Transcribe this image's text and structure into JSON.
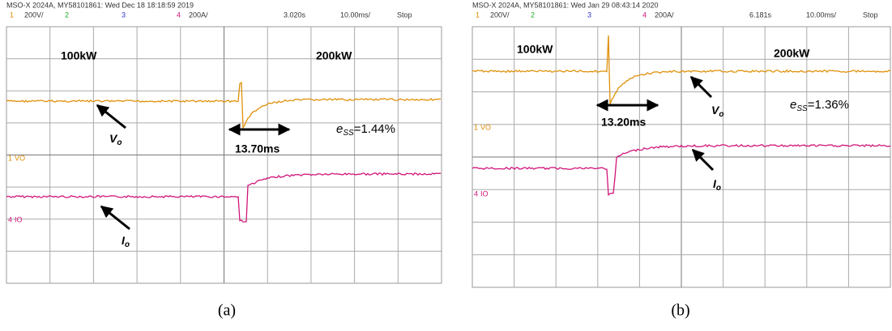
{
  "panels": [
    {
      "header": "MSO-X 2024A, MY58101861: Wed Dec 18 18:18:59 2019",
      "channels": {
        "ch1": "1",
        "ch1_scale": "200V/",
        "ch2": "2",
        "ch3": "3",
        "ch4": "4",
        "ch4_scale": "200A/",
        "time_ref": "3.020s",
        "time_scale": "10.00ms/",
        "status": "Stop"
      },
      "markers": {
        "v_num": "1",
        "v_name": "VO",
        "i_num": "4",
        "i_name": "IO"
      },
      "left_power": "100kW",
      "right_power": "200kW",
      "v_label": {
        "main": "V",
        "sub": "o"
      },
      "i_label": {
        "main": "I",
        "sub": "o"
      },
      "settling_time": "13.70ms",
      "error": {
        "main": "e",
        "sub": "SS",
        "rest": "=1.44%"
      },
      "caption": "(a)"
    },
    {
      "header": "MSO-X 2024A, MY58101861: Wed Jan 29 08:43:14 2020",
      "channels": {
        "ch1": "1",
        "ch1_scale": "200V/",
        "ch2": "2",
        "ch3": "3",
        "ch4": "4",
        "ch4_scale": "200A/",
        "time_ref": "6.181s",
        "time_scale": "10.00ms/",
        "status": "Stop"
      },
      "markers": {
        "v_num": "1",
        "v_name": "VO",
        "i_num": "4",
        "i_name": "IO"
      },
      "left_power": "100kW",
      "right_power": "200kW",
      "v_label": {
        "main": "V",
        "sub": "o"
      },
      "i_label": {
        "main": "I",
        "sub": "o"
      },
      "settling_time": "13.20ms",
      "error": {
        "main": "e",
        "sub": "SS",
        "rest": "=1.36%"
      },
      "caption": "(b)"
    }
  ]
}
